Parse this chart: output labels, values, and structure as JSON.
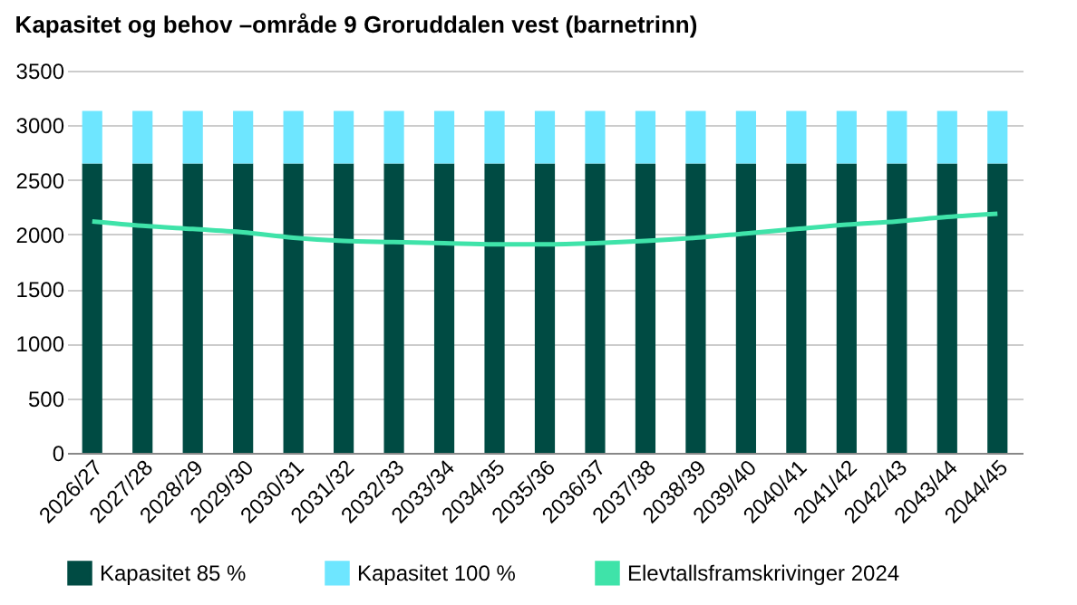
{
  "chart_data": {
    "type": "bar",
    "title": "Kapasitet og behov –område 9 Groruddalen vest (barnetrinn)",
    "categories": [
      "2026/27",
      "2027/28",
      "2028/29",
      "2029/30",
      "2030/31",
      "2031/32",
      "2032/33",
      "2033/34",
      "2034/35",
      "2035/36",
      "2036/37",
      "2037/38",
      "2038/39",
      "2039/40",
      "2040/41",
      "2041/42",
      "2042/43",
      "2043/44",
      "2044/45"
    ],
    "stacked": true,
    "series": [
      {
        "name": "Kapasitet 85 %",
        "color": "#004b43",
        "values": [
          2650,
          2650,
          2650,
          2650,
          2650,
          2650,
          2650,
          2650,
          2650,
          2650,
          2650,
          2650,
          2650,
          2650,
          2650,
          2650,
          2650,
          2650,
          2650
        ]
      },
      {
        "name": "Kapasitet 100 %",
        "color": "#6ee6ff",
        "values": [
          480,
          480,
          480,
          480,
          480,
          480,
          480,
          480,
          480,
          480,
          480,
          480,
          480,
          480,
          480,
          480,
          480,
          480,
          480
        ]
      },
      {
        "name": "Elevtallsframskrivinger 2024",
        "color": "#3fe3a9",
        "type": "line",
        "values": [
          2120,
          2080,
          2050,
          2020,
          1970,
          1940,
          1930,
          1920,
          1910,
          1910,
          1920,
          1940,
          1970,
          2010,
          2050,
          2090,
          2120,
          2160,
          2190
        ]
      }
    ],
    "ylim": [
      0,
      3500
    ],
    "yticks": [
      0,
      500,
      1000,
      1500,
      2000,
      2500,
      3000,
      3500
    ],
    "grid": "y",
    "legend": "bottom"
  }
}
